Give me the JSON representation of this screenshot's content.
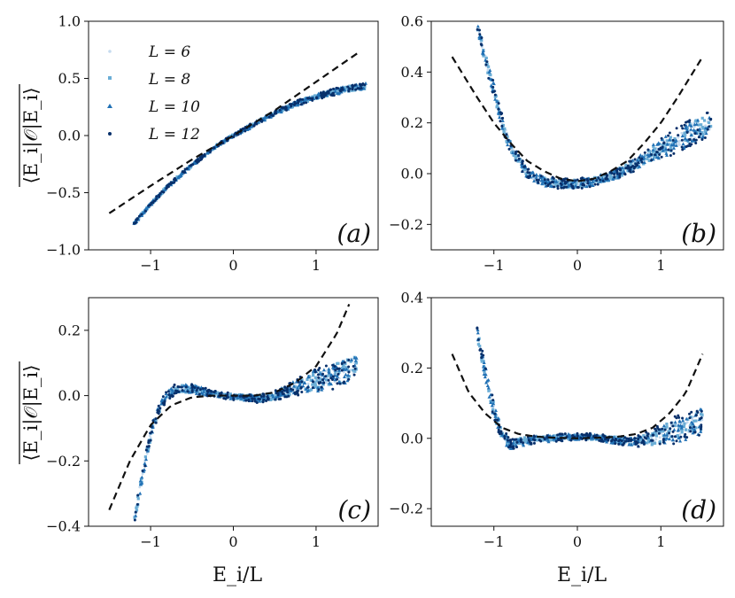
{
  "figure": {
    "xlabel": "E_i/L",
    "ylabel": "⟨E_i|𝒪|E_i⟩"
  },
  "legend": {
    "entries": [
      {
        "label": "L = 6",
        "color": "#c6dbef",
        "marker": "dot"
      },
      {
        "label": "L = 8",
        "color": "#6baed6",
        "marker": "square"
      },
      {
        "label": "L = 10",
        "color": "#2171b5",
        "marker": "triangle"
      },
      {
        "label": "L = 12",
        "color": "#08306b",
        "marker": "dot"
      }
    ]
  },
  "chart_data": [
    {
      "type": "scatter",
      "panel_label": "(a)",
      "xlim": [
        -1.75,
        1.75
      ],
      "ylim": [
        -1.0,
        1.0
      ],
      "xticks": [
        {
          "v": -1,
          "label": "−1"
        },
        {
          "v": 0,
          "label": "0"
        },
        {
          "v": 1,
          "label": "1"
        }
      ],
      "yticks": [
        {
          "v": -1.0,
          "label": "−1.0"
        },
        {
          "v": -0.5,
          "label": "−0.5"
        },
        {
          "v": 0.0,
          "label": "0.0"
        },
        {
          "v": 0.5,
          "label": "0.5"
        },
        {
          "v": 1.0,
          "label": "1.0"
        }
      ],
      "theory": {
        "style": "dashed",
        "x": [
          -1.5,
          -1.0,
          -0.5,
          0.0,
          0.5,
          1.0,
          1.5
        ],
        "y": [
          -0.68,
          -0.44,
          -0.21,
          0.0,
          0.22,
          0.47,
          0.72
        ]
      },
      "trend": {
        "x": [
          -1.2,
          -1.0,
          -0.8,
          -0.6,
          -0.4,
          -0.2,
          0.0,
          0.2,
          0.4,
          0.6,
          0.8,
          1.0,
          1.2,
          1.4,
          1.6
        ],
        "y": [
          -0.77,
          -0.6,
          -0.45,
          -0.32,
          -0.2,
          -0.09,
          0.0,
          0.08,
          0.16,
          0.23,
          0.29,
          0.34,
          0.38,
          0.41,
          0.43
        ],
        "spread": [
          0.015,
          0.015,
          0.015,
          0.015,
          0.015,
          0.015,
          0.015,
          0.02,
          0.02,
          0.02,
          0.025,
          0.025,
          0.03,
          0.03,
          0.03
        ]
      }
    },
    {
      "type": "scatter",
      "panel_label": "(b)",
      "xlim": [
        -1.75,
        1.75
      ],
      "ylim": [
        -0.3,
        0.6
      ],
      "xticks": [
        {
          "v": -1,
          "label": "−1"
        },
        {
          "v": 0,
          "label": "0"
        },
        {
          "v": 1,
          "label": "1"
        }
      ],
      "yticks": [
        {
          "v": -0.2,
          "label": "−0.2"
        },
        {
          "v": 0.0,
          "label": "0.0"
        },
        {
          "v": 0.2,
          "label": "0.2"
        },
        {
          "v": 0.4,
          "label": "0.4"
        },
        {
          "v": 0.6,
          "label": "0.6"
        }
      ],
      "theory": {
        "style": "dashed",
        "x": [
          -1.5,
          -1.2,
          -1.0,
          -0.8,
          -0.6,
          -0.4,
          -0.2,
          0.0,
          0.2,
          0.4,
          0.6,
          0.8,
          1.0,
          1.2,
          1.5
        ],
        "y": [
          0.46,
          0.3,
          0.2,
          0.12,
          0.05,
          0.01,
          -0.02,
          -0.03,
          -0.02,
          0.01,
          0.05,
          0.12,
          0.2,
          0.3,
          0.46
        ]
      },
      "trend": {
        "x": [
          -1.2,
          -1.1,
          -1.0,
          -0.9,
          -0.8,
          -0.6,
          -0.4,
          -0.2,
          0.0,
          0.2,
          0.4,
          0.6,
          0.8,
          1.0,
          1.2,
          1.4,
          1.6
        ],
        "y": [
          0.58,
          0.45,
          0.33,
          0.2,
          0.1,
          0.0,
          -0.03,
          -0.04,
          -0.04,
          -0.03,
          -0.01,
          0.02,
          0.06,
          0.1,
          0.13,
          0.17,
          0.2
        ],
        "spread": [
          0.02,
          0.03,
          0.03,
          0.03,
          0.03,
          0.02,
          0.02,
          0.02,
          0.02,
          0.02,
          0.02,
          0.025,
          0.03,
          0.04,
          0.05,
          0.05,
          0.05
        ]
      }
    },
    {
      "type": "scatter",
      "panel_label": "(c)",
      "xlim": [
        -1.75,
        1.75
      ],
      "ylim": [
        -0.4,
        0.3
      ],
      "xticks": [
        {
          "v": -1,
          "label": "−1"
        },
        {
          "v": 0,
          "label": "0"
        },
        {
          "v": 1,
          "label": "1"
        }
      ],
      "yticks": [
        {
          "v": -0.4,
          "label": "−0.4"
        },
        {
          "v": -0.2,
          "label": "−0.2"
        },
        {
          "v": 0.0,
          "label": "0.0"
        },
        {
          "v": 0.2,
          "label": "0.2"
        }
      ],
      "theory": {
        "style": "dashed",
        "x": [
          -1.5,
          -1.25,
          -1.0,
          -0.75,
          -0.5,
          -0.25,
          0.0,
          0.25,
          0.5,
          0.75,
          1.0,
          1.25,
          1.4
        ],
        "y": [
          -0.35,
          -0.2,
          -0.09,
          -0.03,
          -0.005,
          0.0,
          0.0,
          0.0,
          0.01,
          0.04,
          0.09,
          0.19,
          0.28
        ]
      },
      "trend": {
        "x": [
          -1.2,
          -1.1,
          -1.0,
          -0.9,
          -0.8,
          -0.7,
          -0.5,
          -0.3,
          -0.1,
          0.1,
          0.3,
          0.5,
          0.7,
          0.9,
          1.1,
          1.3,
          1.5
        ],
        "y": [
          -0.38,
          -0.25,
          -0.12,
          -0.04,
          0.0,
          0.02,
          0.02,
          0.01,
          0.0,
          -0.005,
          -0.01,
          0.0,
          0.02,
          0.04,
          0.05,
          0.07,
          0.1
        ],
        "spread": [
          0.02,
          0.02,
          0.02,
          0.015,
          0.015,
          0.015,
          0.015,
          0.012,
          0.01,
          0.01,
          0.012,
          0.015,
          0.02,
          0.035,
          0.04,
          0.045,
          0.04
        ]
      }
    },
    {
      "type": "scatter",
      "panel_label": "(d)",
      "xlim": [
        -1.75,
        1.75
      ],
      "ylim": [
        -0.25,
        0.4
      ],
      "xticks": [
        {
          "v": -1,
          "label": "−1"
        },
        {
          "v": 0,
          "label": "0"
        },
        {
          "v": 1,
          "label": "1"
        }
      ],
      "yticks": [
        {
          "v": -0.2,
          "label": "−0.2"
        },
        {
          "v": 0.0,
          "label": "0.0"
        },
        {
          "v": 0.2,
          "label": "0.2"
        },
        {
          "v": 0.4,
          "label": "0.4"
        }
      ],
      "theory": {
        "style": "dashed",
        "x": [
          -1.5,
          -1.3,
          -1.1,
          -0.9,
          -0.7,
          -0.5,
          -0.3,
          0.0,
          0.3,
          0.5,
          0.7,
          0.9,
          1.1,
          1.3,
          1.5
        ],
        "y": [
          0.24,
          0.13,
          0.07,
          0.03,
          0.012,
          0.005,
          0.002,
          0.0,
          0.002,
          0.005,
          0.012,
          0.03,
          0.07,
          0.13,
          0.24
        ]
      },
      "trend": {
        "x": [
          -1.2,
          -1.1,
          -1.0,
          -0.9,
          -0.8,
          -0.7,
          -0.5,
          -0.3,
          -0.1,
          0.1,
          0.3,
          0.5,
          0.7,
          0.9,
          1.1,
          1.3,
          1.5
        ],
        "y": [
          0.3,
          0.18,
          0.08,
          0.01,
          -0.02,
          -0.01,
          -0.005,
          0.0,
          0.005,
          0.005,
          0.0,
          -0.005,
          -0.01,
          0.0,
          0.02,
          0.03,
          0.05
        ],
        "spread": [
          0.02,
          0.025,
          0.025,
          0.02,
          0.015,
          0.015,
          0.012,
          0.01,
          0.01,
          0.01,
          0.01,
          0.012,
          0.015,
          0.025,
          0.035,
          0.04,
          0.04
        ]
      }
    }
  ]
}
